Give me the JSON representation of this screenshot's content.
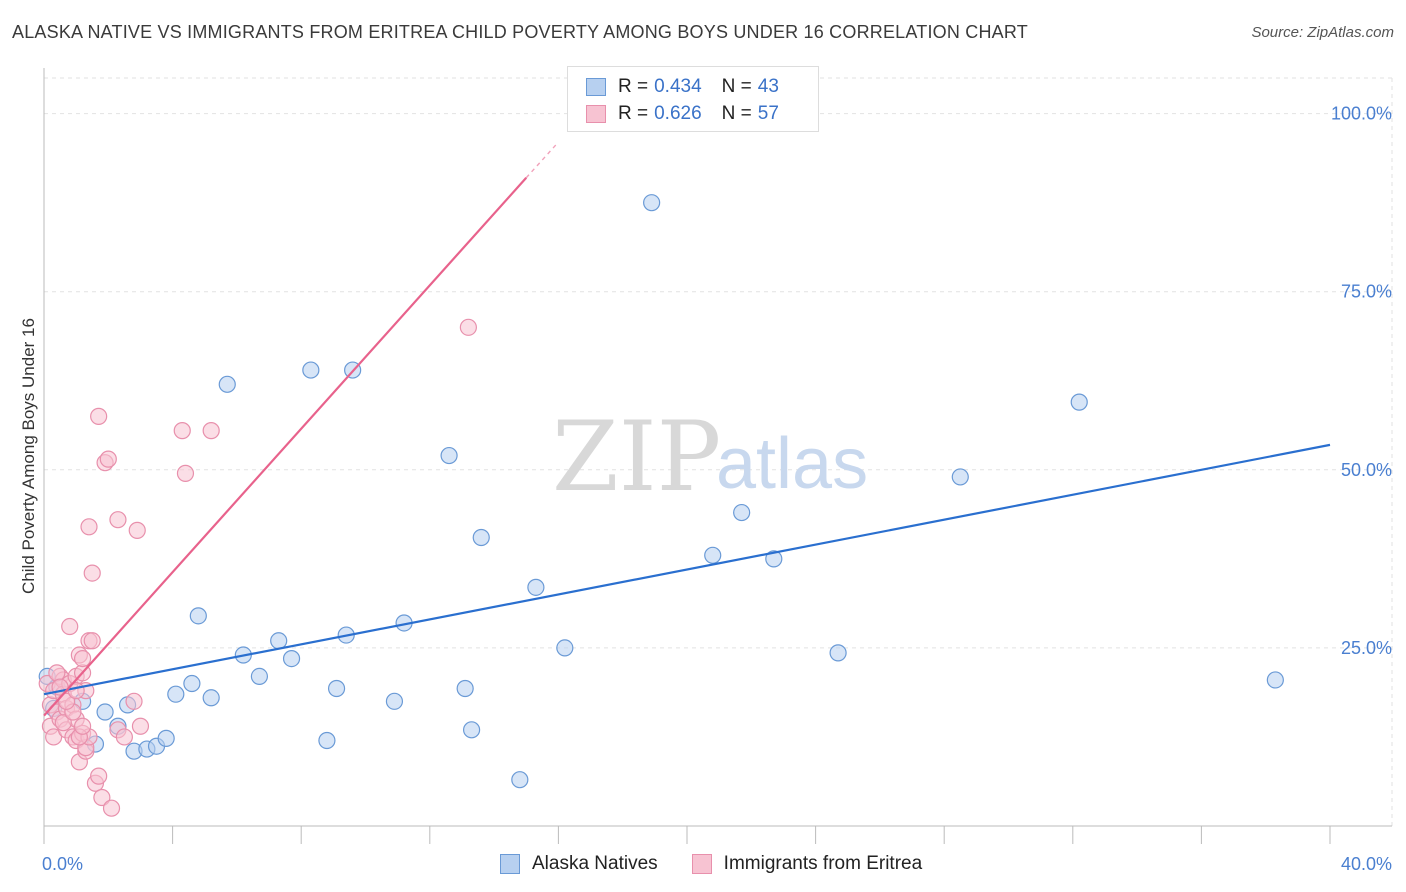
{
  "title": "ALASKA NATIVE VS IMMIGRANTS FROM ERITREA CHILD POVERTY AMONG BOYS UNDER 16 CORRELATION CHART",
  "source": "Source: ZipAtlas.com",
  "watermark": {
    "zip": "ZIP",
    "atlas": "atlas"
  },
  "colors": {
    "blue_fill": "#b7d0f0",
    "blue_stroke": "#6a9ad6",
    "blue_line": "#2a6fcf",
    "pink_fill": "#f7c3d2",
    "pink_stroke": "#e890ac",
    "pink_line": "#e8628c",
    "tick_text": "#4a7fd0",
    "grid": "#e2e2e2"
  },
  "legend": {
    "rows": [
      {
        "r_label": "R =",
        "r_value": "0.434",
        "n_label": "N =",
        "n_value": "43"
      },
      {
        "r_label": "R =",
        "r_value": "0.626",
        "n_label": "N =",
        "n_value": "57"
      }
    ]
  },
  "bottom_legend": [
    "Alaska Natives",
    "Immigrants from Eritrea"
  ],
  "chart_data": {
    "type": "scatter",
    "ylabel": "Child Poverty Among Boys Under 16",
    "xlim": [
      0,
      40
    ],
    "ylim": [
      0,
      105
    ],
    "x_tick_labels": [
      {
        "value": 0,
        "label": "0.0%"
      },
      {
        "value": 40,
        "label": "40.0%"
      }
    ],
    "y_tick_labels": [
      {
        "value": 25,
        "label": "25.0%"
      },
      {
        "value": 50,
        "label": "50.0%"
      },
      {
        "value": 75,
        "label": "75.0%"
      },
      {
        "value": 100,
        "label": "100.0%"
      }
    ],
    "series": [
      {
        "name": "Alaska Natives",
        "color": "blue",
        "points": [
          [
            0.1,
            21.0
          ],
          [
            0.4,
            19.5
          ],
          [
            1.2,
            17.5
          ],
          [
            1.6,
            11.5
          ],
          [
            1.9,
            16.0
          ],
          [
            2.3,
            14.0
          ],
          [
            2.6,
            17.0
          ],
          [
            2.8,
            10.5
          ],
          [
            3.2,
            10.8
          ],
          [
            3.5,
            11.2
          ],
          [
            3.8,
            12.3
          ],
          [
            4.1,
            18.5
          ],
          [
            4.6,
            20.0
          ],
          [
            4.8,
            29.5
          ],
          [
            5.2,
            18.0
          ],
          [
            5.7,
            62.0
          ],
          [
            6.2,
            24.0
          ],
          [
            6.7,
            21.0
          ],
          [
            7.3,
            26.0
          ],
          [
            7.7,
            23.5
          ],
          [
            8.3,
            64.0
          ],
          [
            8.8,
            12.0
          ],
          [
            9.1,
            19.3
          ],
          [
            9.4,
            26.8
          ],
          [
            9.6,
            64.0
          ],
          [
            10.9,
            17.5
          ],
          [
            11.2,
            28.5
          ],
          [
            12.6,
            52.0
          ],
          [
            13.1,
            19.3
          ],
          [
            13.3,
            13.5
          ],
          [
            13.6,
            40.5
          ],
          [
            14.8,
            6.5
          ],
          [
            15.3,
            33.5
          ],
          [
            16.2,
            25.0
          ],
          [
            18.9,
            87.5
          ],
          [
            20.8,
            38.0
          ],
          [
            21.7,
            44.0
          ],
          [
            22.7,
            37.5
          ],
          [
            24.7,
            24.3
          ],
          [
            28.5,
            49.0
          ],
          [
            32.2,
            59.5
          ],
          [
            38.3,
            20.5
          ],
          [
            0.3,
            16.5
          ]
        ],
        "trend": {
          "x0": 0,
          "y0": 18.5,
          "x1": 40,
          "y1": 53.5
        }
      },
      {
        "name": "Immigrants from Eritrea",
        "color": "pink",
        "points": [
          [
            0.1,
            20.0
          ],
          [
            0.2,
            17.0
          ],
          [
            0.2,
            14.0
          ],
          [
            0.3,
            12.5
          ],
          [
            0.3,
            19.0
          ],
          [
            0.4,
            16.0
          ],
          [
            0.5,
            21.0
          ],
          [
            0.5,
            15.0
          ],
          [
            0.6,
            20.5
          ],
          [
            0.6,
            18.5
          ],
          [
            0.7,
            16.5
          ],
          [
            0.7,
            13.5
          ],
          [
            0.8,
            20.0
          ],
          [
            0.8,
            28.0
          ],
          [
            0.9,
            12.5
          ],
          [
            0.9,
            17.0
          ],
          [
            1.0,
            21.0
          ],
          [
            1.0,
            15.0
          ],
          [
            1.0,
            12.0
          ],
          [
            1.1,
            24.0
          ],
          [
            1.1,
            9.0
          ],
          [
            1.2,
            21.5
          ],
          [
            1.2,
            23.5
          ],
          [
            1.2,
            13.0
          ],
          [
            1.3,
            19.0
          ],
          [
            1.3,
            10.5
          ],
          [
            1.3,
            11.0
          ],
          [
            1.4,
            42.0
          ],
          [
            1.4,
            26.0
          ],
          [
            1.4,
            12.5
          ],
          [
            1.5,
            35.5
          ],
          [
            1.5,
            26.0
          ],
          [
            1.6,
            6.0
          ],
          [
            1.7,
            57.5
          ],
          [
            1.7,
            7.0
          ],
          [
            1.8,
            4.0
          ],
          [
            1.9,
            51.0
          ],
          [
            2.0,
            51.5
          ],
          [
            2.1,
            2.5
          ],
          [
            2.3,
            13.5
          ],
          [
            2.3,
            43.0
          ],
          [
            2.5,
            12.5
          ],
          [
            2.8,
            17.5
          ],
          [
            2.9,
            41.5
          ],
          [
            3.0,
            14.0
          ],
          [
            4.3,
            55.5
          ],
          [
            4.4,
            49.5
          ],
          [
            5.2,
            55.5
          ],
          [
            13.2,
            70.0
          ],
          [
            0.4,
            21.5
          ],
          [
            0.6,
            14.5
          ],
          [
            0.9,
            16.0
          ],
          [
            1.1,
            12.5
          ],
          [
            0.5,
            19.5
          ],
          [
            0.7,
            17.5
          ],
          [
            1.0,
            19.0
          ],
          [
            1.2,
            14.0
          ]
        ],
        "trend": {
          "x0": 0,
          "y0": 15.5,
          "x1": 15.0,
          "y1": 91.0,
          "dash_to_x": 16.0,
          "dash_to_y": 96.0
        }
      }
    ]
  }
}
